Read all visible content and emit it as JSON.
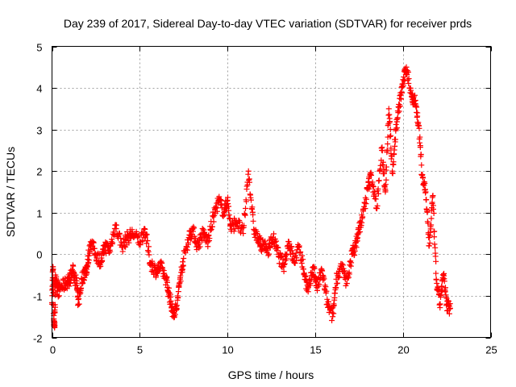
{
  "chart_data": {
    "type": "scatter",
    "title": "Day 239 of 2017, Sidereal Day-to-day VTEC variation (SDTVAR) for receiver prds",
    "xlabel": "GPS time / hours",
    "ylabel": "SDTVAR / TECUs",
    "xlim": [
      0,
      25
    ],
    "ylim": [
      -2,
      5
    ],
    "xticks": [
      0,
      5,
      10,
      15,
      20,
      25
    ],
    "yticks": [
      -2,
      -1,
      0,
      1,
      2,
      3,
      4,
      5
    ],
    "grid": true,
    "marker": "+",
    "color": "#ff0000",
    "series": [
      {
        "name": "prds",
        "anchors": [
          [
            0.0,
            -1.2
          ],
          [
            0.05,
            -0.3
          ],
          [
            0.1,
            -1.6
          ],
          [
            0.15,
            -1.7
          ],
          [
            0.2,
            -0.5
          ],
          [
            0.3,
            -0.9
          ],
          [
            0.5,
            -0.8
          ],
          [
            0.8,
            -0.7
          ],
          [
            1.0,
            -0.6
          ],
          [
            1.2,
            -0.4
          ],
          [
            1.4,
            -0.7
          ],
          [
            1.5,
            -1.2
          ],
          [
            1.7,
            -0.6
          ],
          [
            1.9,
            -0.4
          ],
          [
            2.0,
            -0.3
          ],
          [
            2.2,
            0.3
          ],
          [
            2.5,
            0.0
          ],
          [
            2.8,
            -0.2
          ],
          [
            3.0,
            0.2
          ],
          [
            3.3,
            0.1
          ],
          [
            3.6,
            0.7
          ],
          [
            4.0,
            0.2
          ],
          [
            4.3,
            0.4
          ],
          [
            4.6,
            0.5
          ],
          [
            5.0,
            0.3
          ],
          [
            5.3,
            0.6
          ],
          [
            5.6,
            -0.2
          ],
          [
            5.9,
            -0.4
          ],
          [
            6.2,
            -0.3
          ],
          [
            6.5,
            -0.6
          ],
          [
            6.7,
            -1.0
          ],
          [
            6.9,
            -1.4
          ],
          [
            7.1,
            -1.3
          ],
          [
            7.3,
            -0.6
          ],
          [
            7.5,
            -0.1
          ],
          [
            7.8,
            0.4
          ],
          [
            8.0,
            0.6
          ],
          [
            8.3,
            0.2
          ],
          [
            8.6,
            0.5
          ],
          [
            8.9,
            0.3
          ],
          [
            9.2,
            0.9
          ],
          [
            9.5,
            1.3
          ],
          [
            9.8,
            1.0
          ],
          [
            10.0,
            1.3
          ],
          [
            10.2,
            0.6
          ],
          [
            10.5,
            0.8
          ],
          [
            10.9,
            0.5
          ],
          [
            11.2,
            2.0
          ],
          [
            11.5,
            0.6
          ],
          [
            11.8,
            0.3
          ],
          [
            12.0,
            0.2
          ],
          [
            12.3,
            0.1
          ],
          [
            12.6,
            0.4
          ],
          [
            12.9,
            0.0
          ],
          [
            13.2,
            -0.3
          ],
          [
            13.5,
            0.3
          ],
          [
            13.8,
            -0.2
          ],
          [
            14.1,
            0.2
          ],
          [
            14.4,
            -0.5
          ],
          [
            14.6,
            -0.9
          ],
          [
            14.9,
            -0.3
          ],
          [
            15.1,
            -0.8
          ],
          [
            15.4,
            -0.4
          ],
          [
            15.7,
            -1.2
          ],
          [
            16.0,
            -1.5
          ],
          [
            16.2,
            -0.6
          ],
          [
            16.5,
            -0.3
          ],
          [
            16.8,
            -0.7
          ],
          [
            17.1,
            0.0
          ],
          [
            17.3,
            0.2
          ],
          [
            17.5,
            0.6
          ],
          [
            17.7,
            0.9
          ],
          [
            18.0,
            1.6
          ],
          [
            18.2,
            1.9
          ],
          [
            18.5,
            1.1
          ],
          [
            18.8,
            2.5
          ],
          [
            19.0,
            1.5
          ],
          [
            19.2,
            3.5
          ],
          [
            19.4,
            2.0
          ],
          [
            19.6,
            3.0
          ],
          [
            19.8,
            3.6
          ],
          [
            20.0,
            4.1
          ],
          [
            20.2,
            4.5
          ],
          [
            20.5,
            3.8
          ],
          [
            20.7,
            3.7
          ],
          [
            20.9,
            3.1
          ],
          [
            21.1,
            1.9
          ],
          [
            21.3,
            1.5
          ],
          [
            21.5,
            0.2
          ],
          [
            21.7,
            1.4
          ],
          [
            21.9,
            -0.6
          ],
          [
            22.1,
            -1.2
          ],
          [
            22.3,
            -0.5
          ],
          [
            22.5,
            -1.2
          ],
          [
            22.7,
            -1.3
          ]
        ]
      }
    ]
  }
}
